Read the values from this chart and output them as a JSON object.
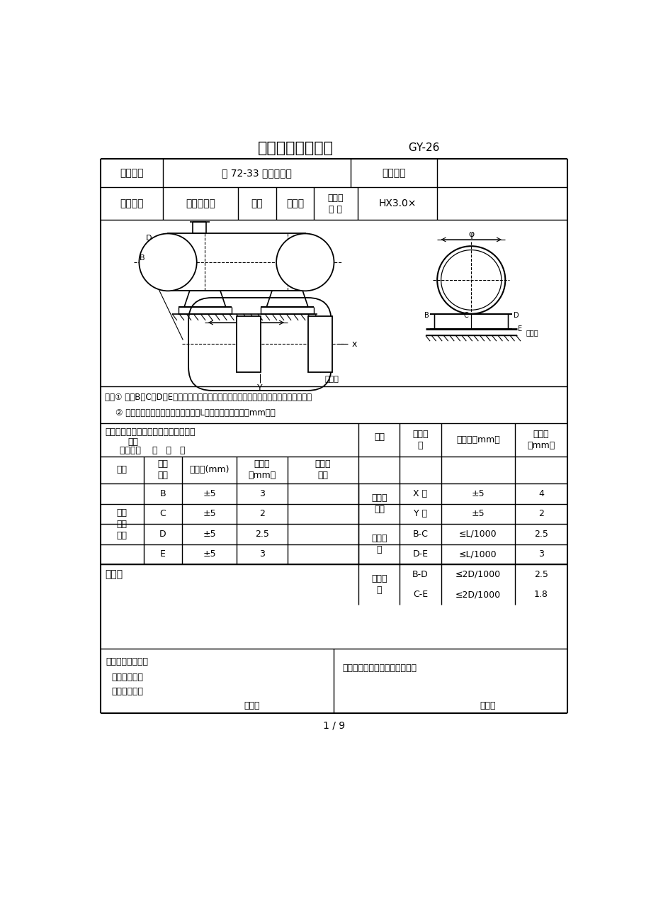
{
  "title": "卧式设备安装记录",
  "title_suffix": " GY-26",
  "project_name": "柳 72-33 脱水站工程",
  "project_code_label": "工程编号",
  "equipment_label": "设备名称",
  "project_label": "工程名称",
  "equipment_name": "三相分离器",
  "position_label": "位号",
  "position_value": "容器区",
  "model_label1": "型号与",
  "model_label2": "规 格",
  "model_value": "HX3.0×",
  "note1": "注：① 图中B、C、D、E分别为设备筒体上基准中心点到基础标高基准线的相对标高值。",
  "note2": "    ② 轴向水平偏差应低向排液口方向。L为两测点间的距离（mm）。",
  "sliding_line1": "滑动端鞍座滑动裕量、螺栓松动核验结",
  "sliding_line2": "果：",
  "inspector_line": "核验人：    年   月   日",
  "header_xiang": "项目",
  "header_cebu": "测量部\n位",
  "header_yun": "允许值（mm）",
  "header_shi": "实测值\n（mm）",
  "subheader_xiang": "项目",
  "subheader_ce": "测量\n部位",
  "subheader_yun": "允许值(mm)",
  "subheader_shi": "实测值\n（mm）",
  "subheader_zhong": "中心线\n偏差",
  "conclusion_label": "结论：",
  "construction_label": "施工班（组）长：",
  "quality_label": "质量检查员：",
  "tech_label": "技术负责人：",
  "date_bottom_left": "年月日",
  "supervision_label": "建设（监理）单位专业工程师：",
  "date_bottom_right": "年月日",
  "page_label": "1 / 9",
  "rows_left": [
    {
      "position": "B",
      "tolerance": "±5",
      "measured": "3"
    },
    {
      "position": "C",
      "tolerance": "±5",
      "measured": "2"
    },
    {
      "position": "D",
      "tolerance": "±5",
      "measured": "2.5"
    },
    {
      "position": "E",
      "tolerance": "±5",
      "measured": "3"
    }
  ],
  "left_group": "安装\n标高\n偏差",
  "rows_center": [
    {
      "axis": "X 轴",
      "tolerance": "±5",
      "measured": "4"
    },
    {
      "axis": "Y 轴",
      "tolerance": "±5",
      "measured": "2"
    }
  ],
  "center_group": "中心线\n偏差",
  "rows_right": [
    {
      "position": "B-C",
      "tolerance": "≤L/1000",
      "measured": "2.5"
    },
    {
      "position": "D-E",
      "tolerance": "≤L/1000",
      "measured": "3"
    },
    {
      "position": "B-D",
      "tolerance": "≤2D/1000",
      "measured": "2.5"
    },
    {
      "position": "C-E",
      "tolerance": "≤2D/1000",
      "measured": "1.8"
    }
  ],
  "right_group1": "轴向水\n平",
  "right_group2": "径向水\n平",
  "bg_color": "#ffffff",
  "line_color": "#000000",
  "text_color": "#000000"
}
